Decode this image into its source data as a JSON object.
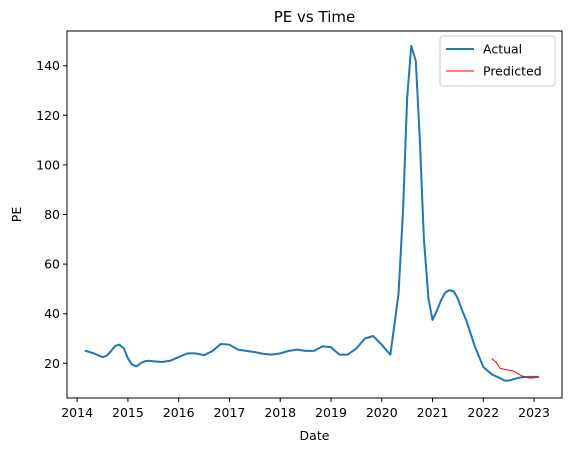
{
  "chart_data": {
    "type": "line",
    "title": "PE vs Time",
    "xlabel": "Date",
    "ylabel": "PE",
    "xlim": [
      2013.8,
      2023.55
    ],
    "ylim": [
      6,
      154
    ],
    "x_ticks": [
      2014,
      2015,
      2016,
      2017,
      2018,
      2019,
      2020,
      2021,
      2022,
      2023
    ],
    "y_ticks": [
      20,
      40,
      60,
      80,
      100,
      120,
      140
    ],
    "grid": false,
    "legend_position": "top-right",
    "series": [
      {
        "name": "Actual",
        "color": "#1f77b4",
        "line_width": 2,
        "x": [
          2014.17,
          2014.33,
          2014.5,
          2014.58,
          2014.67,
          2014.75,
          2014.83,
          2014.92,
          2015.0,
          2015.08,
          2015.17,
          2015.25,
          2015.33,
          2015.42,
          2015.5,
          2015.67,
          2015.83,
          2016.0,
          2016.17,
          2016.33,
          2016.5,
          2016.67,
          2016.83,
          2017.0,
          2017.08,
          2017.17,
          2017.33,
          2017.5,
          2017.67,
          2017.83,
          2018.0,
          2018.17,
          2018.33,
          2018.5,
          2018.67,
          2018.83,
          2019.0,
          2019.08,
          2019.17,
          2019.33,
          2019.5,
          2019.67,
          2019.83,
          2020.0,
          2020.08,
          2020.17,
          2020.33,
          2020.42,
          2020.5,
          2020.58,
          2020.67,
          2020.75,
          2020.83,
          2020.92,
          2021.0,
          2021.08,
          2021.17,
          2021.25,
          2021.33,
          2021.42,
          2021.5,
          2021.58,
          2021.67,
          2021.75,
          2021.83,
          2021.92,
          2022.0,
          2022.17,
          2022.33,
          2022.42,
          2022.5,
          2022.58,
          2022.67,
          2022.75,
          2022.83,
          2023.0,
          2023.08
        ],
        "y": [
          25,
          24,
          22.5,
          23,
          25,
          27,
          27.5,
          26,
          22,
          19.5,
          18.8,
          20,
          20.8,
          21,
          20.8,
          20.5,
          21,
          22.5,
          24,
          24,
          23.3,
          25,
          27.8,
          27.5,
          26.5,
          25.5,
          25,
          24.5,
          23.8,
          23.5,
          24,
          25,
          25.5,
          25,
          25,
          26.8,
          26.5,
          25,
          23.5,
          23.5,
          26,
          30,
          31,
          27.5,
          25.5,
          23.5,
          48,
          82,
          127,
          148,
          142,
          110,
          70,
          46,
          37.5,
          41,
          45.5,
          48.5,
          49.5,
          49,
          46,
          41.5,
          37,
          32,
          27,
          22.5,
          18.5,
          15.5,
          14,
          13,
          13,
          13.5,
          14,
          14.3,
          14.5,
          14.5,
          14.5
        ]
      },
      {
        "name": "Predicted",
        "color": "#ff0000",
        "line_width": 1,
        "x": [
          2022.17,
          2022.25,
          2022.33,
          2022.42,
          2022.58,
          2022.75,
          2022.92,
          2023.08
        ],
        "y": [
          21.8,
          20.5,
          18,
          17.5,
          17,
          15,
          14,
          14.3
        ]
      }
    ]
  }
}
